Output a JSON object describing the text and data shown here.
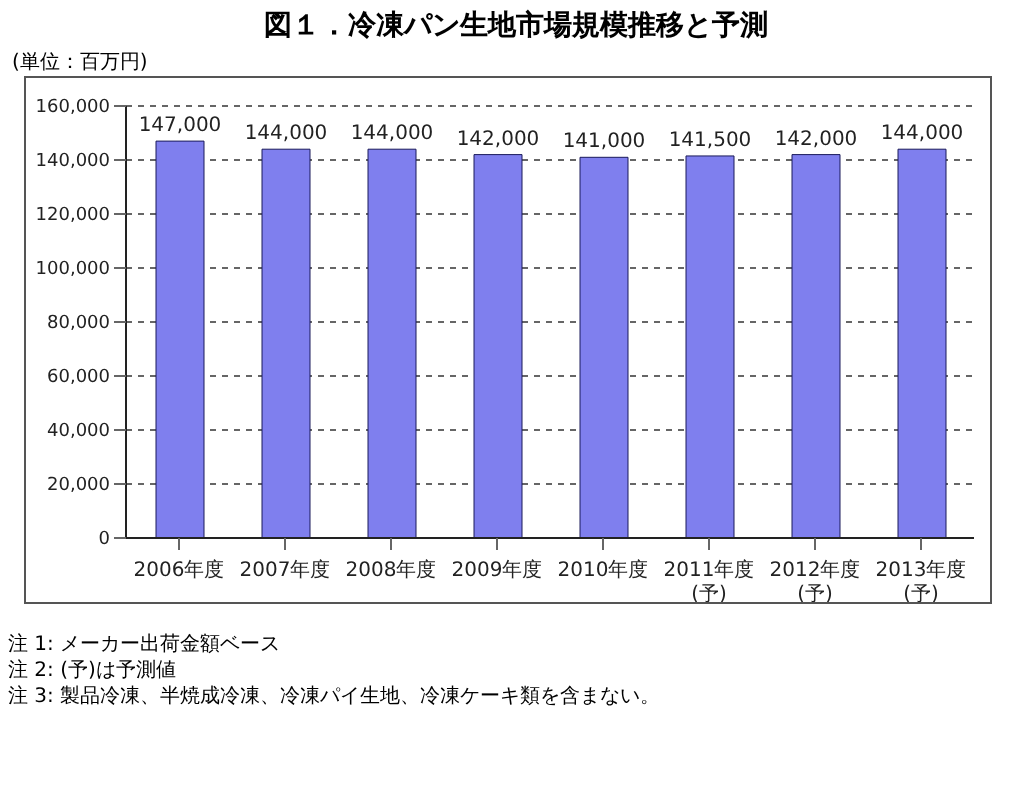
{
  "chart_data": {
    "type": "bar",
    "title": "図１．冷凍パン生地市場規模推移と予測",
    "ylabel": "(単位：百万円)",
    "categories": [
      "2006年度",
      "2007年度",
      "2008年度",
      "2009年度",
      "2010年度",
      "2011年度(予)",
      "2012年度(予)",
      "2013年度(予)"
    ],
    "values": [
      147000,
      144000,
      144000,
      142000,
      141000,
      141500,
      142000,
      144000
    ],
    "value_labels": [
      "147,000",
      "144,000",
      "144,000",
      "142,000",
      "141,000",
      "141,500",
      "142,000",
      "144,000"
    ],
    "color": "#7f7fee",
    "ylim": [
      0,
      160000
    ],
    "yticks": [
      {
        "value": 0,
        "label": "0"
      },
      {
        "value": 20000,
        "label": "20,000"
      },
      {
        "value": 40000,
        "label": "40,000"
      },
      {
        "value": 60000,
        "label": "60,000"
      },
      {
        "value": 80000,
        "label": "80,000"
      },
      {
        "value": 100000,
        "label": "100,000"
      },
      {
        "value": 120000,
        "label": "120,000"
      },
      {
        "value": 140000,
        "label": "140,000"
      },
      {
        "value": 160000,
        "label": "160,000"
      }
    ],
    "grid": "y",
    "annotations": [
      "注 1: メーカー出荷金額ベース",
      "注 2: (予)は予測値",
      "注 3: 製品冷凍、半焼成冷凍、冷凍パイ生地、冷凍ケーキ類を含まない。"
    ]
  }
}
